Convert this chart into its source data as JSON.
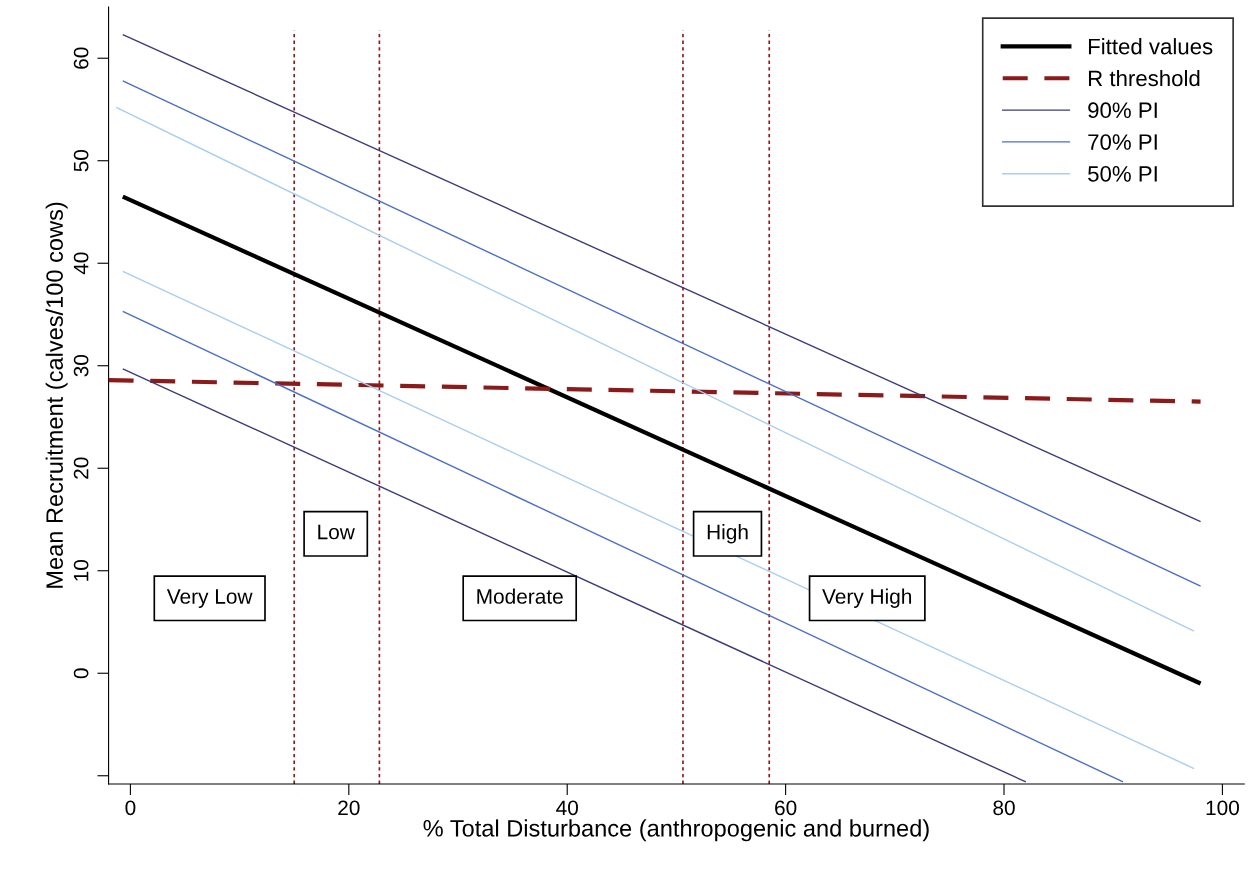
{
  "chart_data": {
    "type": "line",
    "xlabel": "% Total Disturbance (anthropogenic and burned)",
    "ylabel": "Mean Recruitment (calves/100 cows)",
    "xlim": [
      -2,
      102
    ],
    "ylim": [
      -10.8,
      65
    ],
    "xticks": [
      0,
      20,
      40,
      60,
      80,
      100
    ],
    "yticks": [
      {
        "value": -10,
        "label": null
      },
      0,
      10,
      20,
      30,
      40,
      50,
      60
    ],
    "grid": false,
    "legend": "top right",
    "marker": "none",
    "series": [
      {
        "name": "Fitted values",
        "color": "#000000",
        "line_style": "solid",
        "x": [
          -0.7,
          98
        ],
        "values": [
          46.5,
          -1.0
        ]
      },
      {
        "name": "R threshold",
        "color": "#8b1a1a",
        "line_style": "dashed",
        "x": [
          -2,
          98
        ],
        "values": [
          28.6,
          26.5
        ]
      },
      {
        "name": "90% PI",
        "color": "#3b3b7a",
        "line_style": "solid",
        "x": [
          -0.7,
          98
        ],
        "values": [
          62.3,
          14.8
        ]
      },
      {
        "color": "#3b3b7a",
        "line_style": "solid",
        "x": [
          -0.7,
          82
        ],
        "values": [
          29.7,
          -10.6
        ]
      },
      {
        "name": "70% PI",
        "color": "#4a6fc4",
        "line_style": "solid",
        "x": [
          -0.7,
          98
        ],
        "values": [
          57.8,
          8.5
        ]
      },
      {
        "color": "#4a6fc4",
        "line_style": "solid",
        "x": [
          -0.7,
          90.9
        ],
        "values": [
          35.3,
          -10.6
        ]
      },
      {
        "name": "50% PI",
        "color": "#a9cdf0",
        "line_style": "solid",
        "x": [
          -1.3,
          97.4
        ],
        "values": [
          55.2,
          4.1
        ]
      },
      {
        "color": "#a9cdf0",
        "line_style": "solid",
        "x": [
          -0.7,
          97.4
        ],
        "values": [
          39.2,
          -9.3
        ]
      }
    ],
    "ref_lines": [
      {
        "axis": "x",
        "value": 15,
        "color": "#8b1a1a",
        "line_style": "dotted"
      },
      {
        "axis": "x",
        "value": 22.8,
        "color": "#8b1a1a",
        "line_style": "dotted"
      },
      {
        "axis": "x",
        "value": 50.6,
        "color": "#8b1a1a",
        "line_style": "dotted"
      },
      {
        "axis": "x",
        "value": 58.5,
        "color": "#8b1a1a",
        "line_style": "dotted"
      }
    ],
    "annotations": [
      "Very Low",
      "Low",
      "Moderate",
      "High",
      "Very High"
    ]
  }
}
